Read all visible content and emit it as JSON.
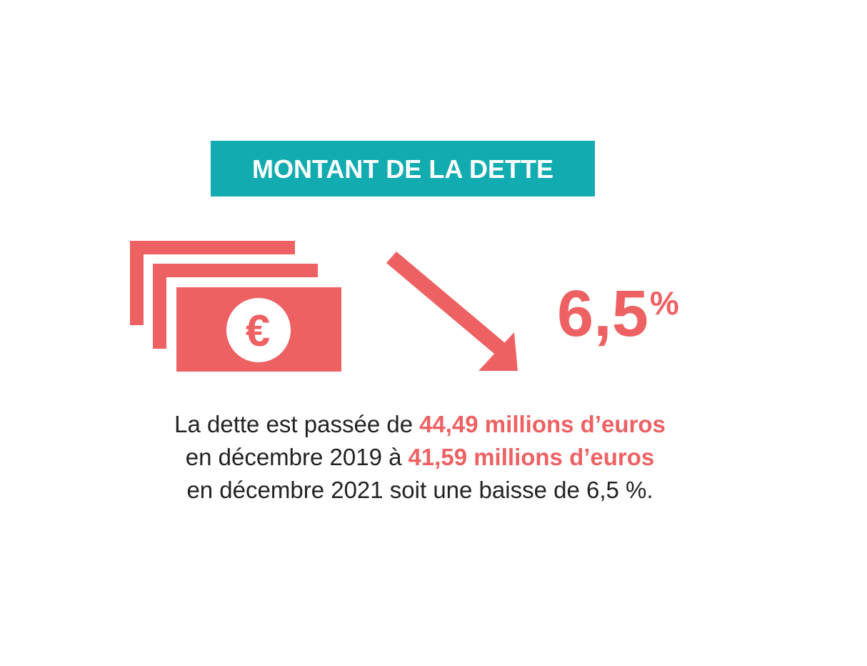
{
  "header": {
    "title": "MONTANT DE LA DETTE"
  },
  "icon": {
    "symbol": "€"
  },
  "stat": {
    "value": "6,5",
    "unit": "%"
  },
  "description": {
    "lines": [
      [
        {
          "text": "La dette est passée de",
          "highlight": false
        },
        {
          "text": "44,49 millions d’euros",
          "highlight": true
        }
      ],
      [
        {
          "text": "en décembre 2019 à",
          "highlight": false
        },
        {
          "text": "41,59 millions d’euros",
          "highlight": true
        }
      ],
      [
        {
          "text": "en décembre 2021 soit une baisse de 6,5 %.",
          "highlight": false
        }
      ]
    ]
  }
}
